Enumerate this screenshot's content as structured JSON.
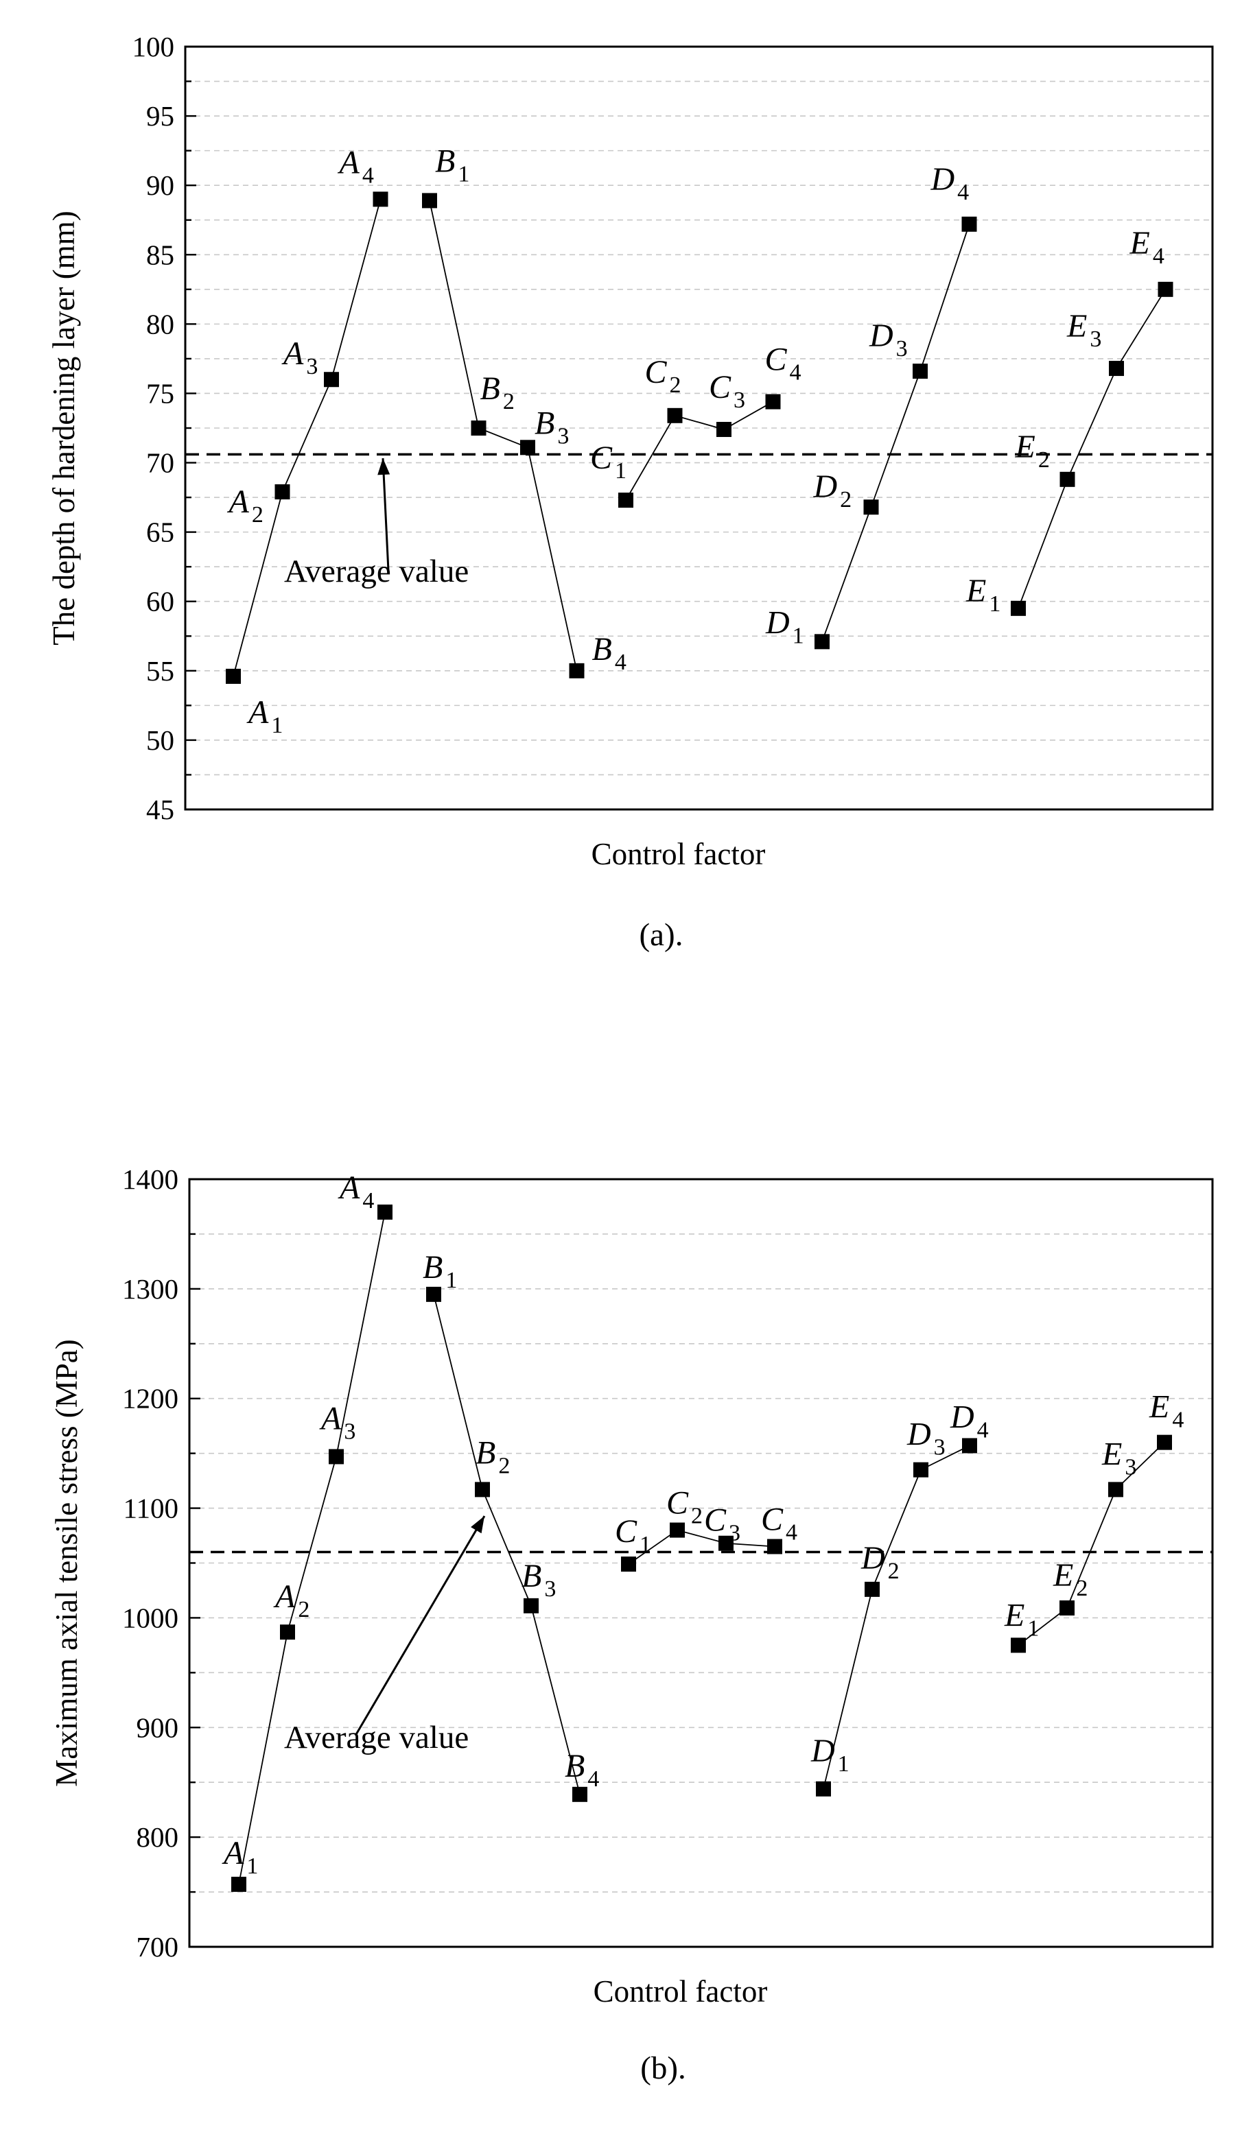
{
  "chart_data": [
    {
      "type": "line",
      "caption": "(a).",
      "xlabel": "Control factor",
      "ylabel": "The depth of hardening layer (mm)",
      "ylim": [
        45,
        100
      ],
      "yticks": [
        45,
        50,
        55,
        60,
        65,
        70,
        75,
        80,
        85,
        90,
        95,
        100
      ],
      "grid": true,
      "average": {
        "label": "Average value",
        "value": 70.6
      },
      "series": [
        {
          "name": "A",
          "points": [
            {
              "label": "A",
              "sub": "1",
              "value": 54.6
            },
            {
              "label": "A",
              "sub": "2",
              "value": 67.9
            },
            {
              "label": "A",
              "sub": "3",
              "value": 76.0
            },
            {
              "label": "A",
              "sub": "4",
              "value": 89.0
            }
          ]
        },
        {
          "name": "B",
          "points": [
            {
              "label": "B",
              "sub": "1",
              "value": 88.9
            },
            {
              "label": "B",
              "sub": "2",
              "value": 72.5
            },
            {
              "label": "B",
              "sub": "3",
              "value": 71.1
            },
            {
              "label": "B",
              "sub": "4",
              "value": 55.0
            }
          ]
        },
        {
          "name": "C",
          "points": [
            {
              "label": "C",
              "sub": "1",
              "value": 67.3
            },
            {
              "label": "C",
              "sub": "2",
              "value": 73.4
            },
            {
              "label": "C",
              "sub": "3",
              "value": 72.4
            },
            {
              "label": "C",
              "sub": "4",
              "value": 74.4
            }
          ]
        },
        {
          "name": "D",
          "points": [
            {
              "label": "D",
              "sub": "1",
              "value": 57.1
            },
            {
              "label": "D",
              "sub": "2",
              "value": 66.8
            },
            {
              "label": "D",
              "sub": "3",
              "value": 76.6
            },
            {
              "label": "D",
              "sub": "4",
              "value": 87.2
            }
          ]
        },
        {
          "name": "E",
          "points": [
            {
              "label": "E",
              "sub": "1",
              "value": 59.5
            },
            {
              "label": "E",
              "sub": "2",
              "value": 68.8
            },
            {
              "label": "E",
              "sub": "3",
              "value": 76.8
            },
            {
              "label": "E",
              "sub": "4",
              "value": 82.5
            }
          ]
        }
      ]
    },
    {
      "type": "line",
      "caption": "(b).",
      "xlabel": "Control factor",
      "ylabel": "Maximum axial tensile stress (MPa)",
      "ylim": [
        700,
        1400
      ],
      "yticks": [
        700,
        800,
        900,
        1000,
        1100,
        1200,
        1300,
        1400
      ],
      "grid": true,
      "average": {
        "label": "Average value",
        "value": 1060
      },
      "series": [
        {
          "name": "A",
          "points": [
            {
              "label": "A",
              "sub": "1",
              "value": 757
            },
            {
              "label": "A",
              "sub": "2",
              "value": 987
            },
            {
              "label": "A",
              "sub": "3",
              "value": 1147
            },
            {
              "label": "A",
              "sub": "4",
              "value": 1370
            }
          ]
        },
        {
          "name": "B",
          "points": [
            {
              "label": "B",
              "sub": "1",
              "value": 1295
            },
            {
              "label": "B",
              "sub": "2",
              "value": 1117
            },
            {
              "label": "B",
              "sub": "3",
              "value": 1011
            },
            {
              "label": "B",
              "sub": "4",
              "value": 839
            }
          ]
        },
        {
          "name": "C",
          "points": [
            {
              "label": "C",
              "sub": "1",
              "value": 1049
            },
            {
              "label": "C",
              "sub": "2",
              "value": 1080
            },
            {
              "label": "C",
              "sub": "3",
              "value": 1068
            },
            {
              "label": "C",
              "sub": "4",
              "value": 1065
            }
          ]
        },
        {
          "name": "D",
          "points": [
            {
              "label": "D",
              "sub": "1",
              "value": 844
            },
            {
              "label": "D",
              "sub": "2",
              "value": 1026
            },
            {
              "label": "D",
              "sub": "3",
              "value": 1135
            },
            {
              "label": "D",
              "sub": "4",
              "value": 1157
            }
          ]
        },
        {
          "name": "E",
          "points": [
            {
              "label": "E",
              "sub": "1",
              "value": 975
            },
            {
              "label": "E",
              "sub": "2",
              "value": 1009
            },
            {
              "label": "E",
              "sub": "3",
              "value": 1117
            },
            {
              "label": "E",
              "sub": "4",
              "value": 1160
            }
          ]
        }
      ]
    }
  ]
}
